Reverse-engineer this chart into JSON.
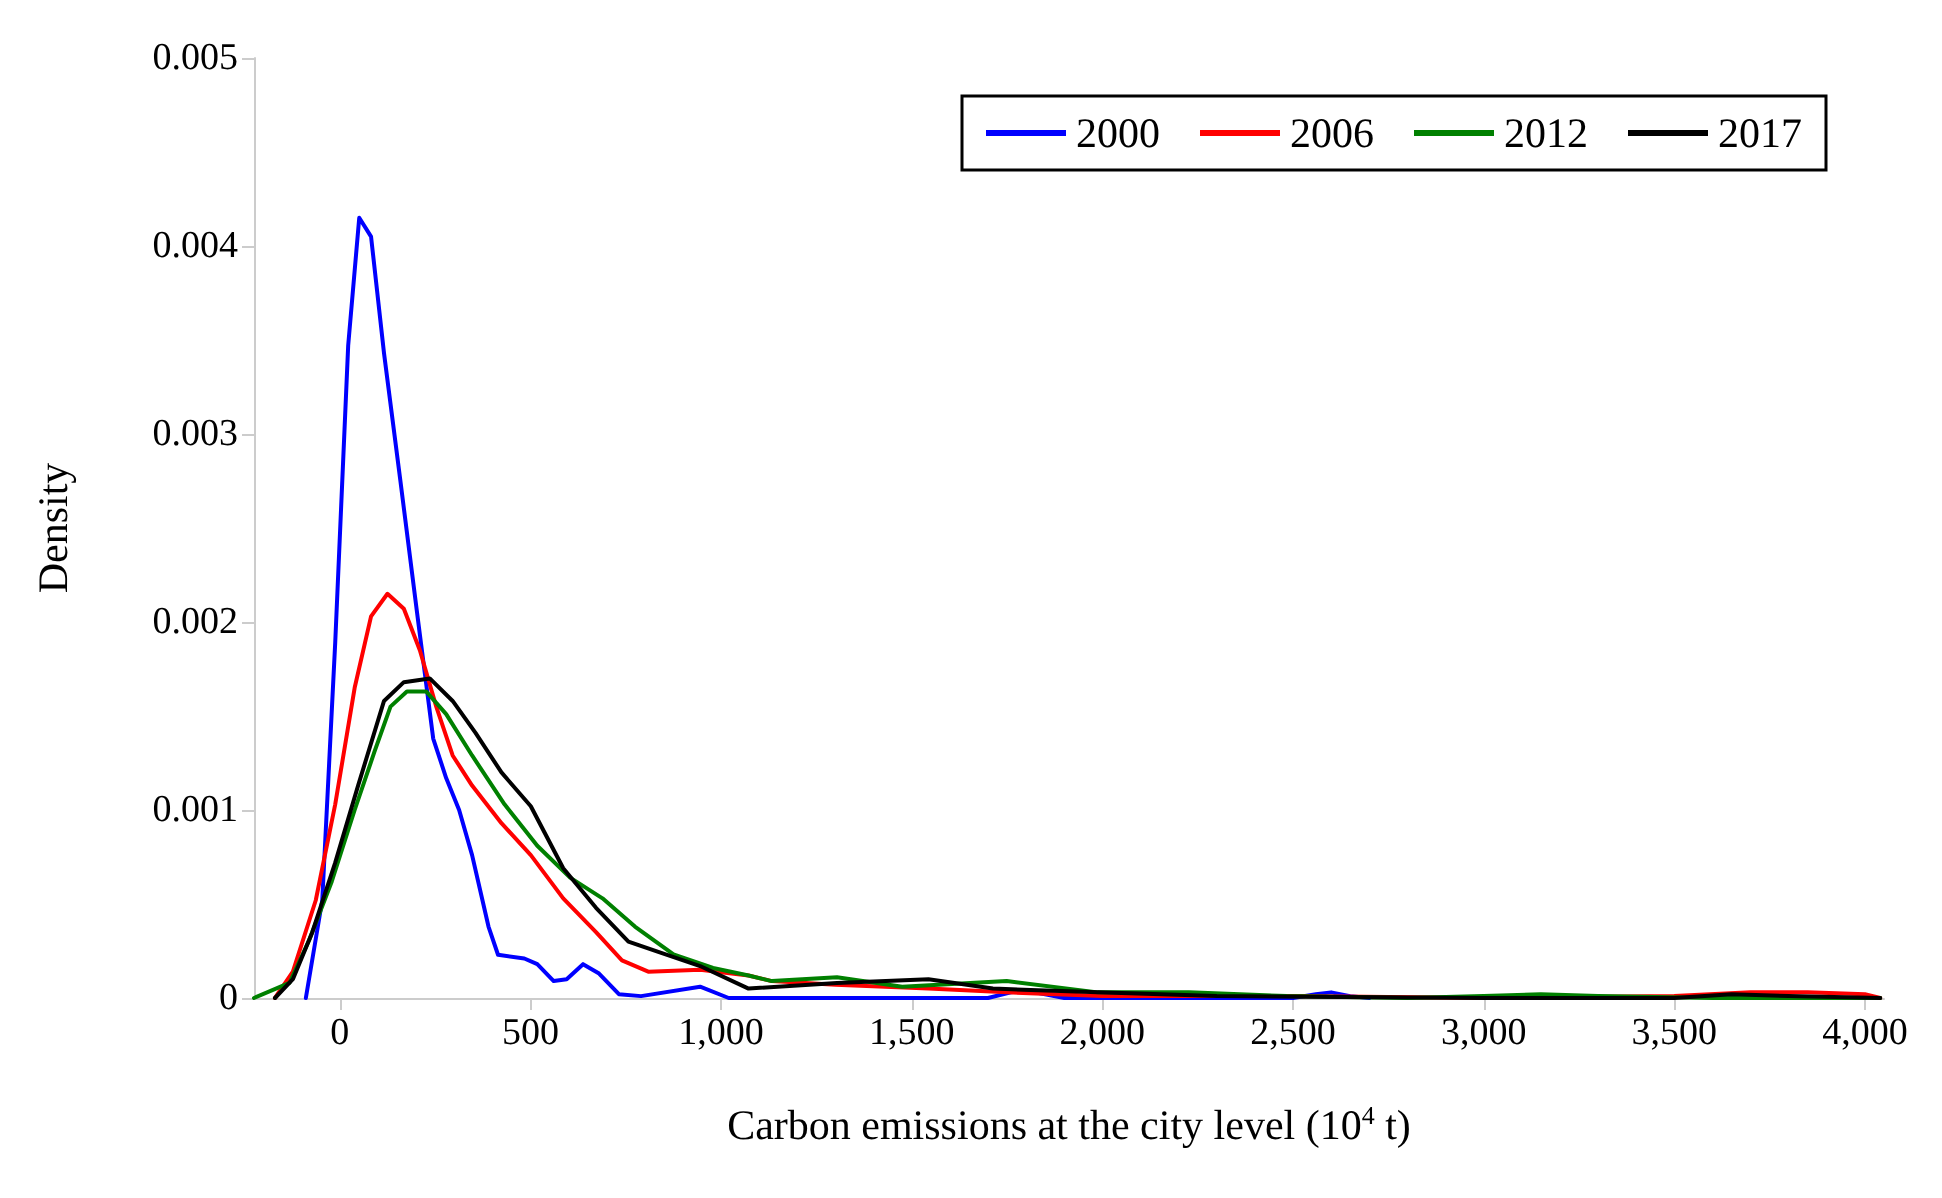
{
  "chart_data": {
    "type": "line",
    "xlabel": "Carbon emissions at the city level (10$^{4}$ t)",
    "ylabel": "Density",
    "xlim": [
      -225,
      4050
    ],
    "xticks": [
      0,
      500,
      {
        "value": 1000,
        "label": "1,000"
      },
      {
        "value": 1500,
        "label": "1,500"
      },
      {
        "value": 2000,
        "label": "2,000"
      },
      {
        "value": 2500,
        "label": "2,500"
      },
      {
        "value": 3000,
        "label": "3,000"
      },
      {
        "value": 3500,
        "label": "3,500"
      },
      {
        "value": 4000,
        "label": "4,000"
      }
    ],
    "ylim": [
      0,
      0.005
    ],
    "yticks": [
      0,
      0.001,
      0.002,
      0.003,
      0.004,
      0.005
    ],
    "grid": false,
    "legend": "top right",
    "marker": "none",
    "line_style": "solid",
    "series": [
      {
        "name": "2000",
        "color": "#0000ff",
        "x": [
          -89,
          -46,
          -12,
          22,
          51,
          82,
          116,
          159,
          202,
          245,
          279,
          313,
          347,
          390,
          415,
          484,
          518,
          561,
          595,
          638,
          680,
          732,
          790,
          945,
          1020,
          1700,
          1760,
          1800,
          1850,
          1900,
          2500,
          2560,
          2600,
          2650,
          2700
        ],
        "values": [
          0,
          0.00052,
          0.00189,
          0.00347,
          0.00415,
          0.00405,
          0.00343,
          0.00275,
          0.00206,
          0.00138,
          0.00117,
          0.001,
          0.00076,
          0.00038,
          0.00023,
          0.00021,
          0.00018,
          9e-05,
          0.0001,
          0.00018,
          0.00013,
          2e-05,
          1e-05,
          6e-05,
          0,
          0,
          3e-05,
          4e-05,
          2e-05,
          0,
          0,
          2e-05,
          3e-05,
          1e-05,
          0
        ]
      },
      {
        "name": "2006",
        "color": "#ff0000",
        "x": [
          -170,
          -123,
          -63,
          -12,
          39,
          82,
          125,
          168,
          210,
          253,
          296,
          347,
          424,
          501,
          586,
          672,
          740,
          809,
          945,
          1072,
          1133,
          1300,
          1544,
          1749,
          2000,
          2500,
          3000,
          3500,
          3700,
          3850,
          4000,
          4040
        ],
        "values": [
          0,
          0.00014,
          0.00052,
          0.00103,
          0.00165,
          0.00203,
          0.00215,
          0.00207,
          0.00185,
          0.00155,
          0.00129,
          0.00113,
          0.00093,
          0.00076,
          0.00053,
          0.00035,
          0.0002,
          0.00014,
          0.00015,
          0.00012,
          9e-05,
          7e-05,
          5e-05,
          3e-05,
          1e-05,
          1e-05,
          0,
          1e-05,
          3e-05,
          3e-05,
          2e-05,
          0
        ]
      },
      {
        "name": "2012",
        "color": "#008000",
        "x": [
          -225,
          -132,
          -80,
          -21,
          39,
          91,
          133,
          176,
          227,
          279,
          347,
          432,
          518,
          604,
          689,
          774,
          877,
          979,
          1072,
          1133,
          1304,
          1475,
          1749,
          1988,
          2227,
          2483,
          2800,
          3000,
          3150,
          3300,
          3600,
          4040
        ],
        "values": [
          0,
          8e-05,
          0.00031,
          0.00062,
          0.001,
          0.00131,
          0.00155,
          0.00163,
          0.00163,
          0.00151,
          0.00129,
          0.00103,
          0.00081,
          0.00064,
          0.00053,
          0.00038,
          0.00023,
          0.00016,
          0.00012,
          9e-05,
          0.00011,
          6e-05,
          9e-05,
          3e-05,
          3e-05,
          1e-05,
          0,
          1e-05,
          2e-05,
          1e-05,
          0,
          0
        ]
      },
      {
        "name": "2017",
        "color": "#000000",
        "x": [
          -170,
          -123,
          -72,
          -12,
          48,
          116,
          168,
          236,
          296,
          356,
          424,
          501,
          586,
          672,
          757,
          843,
          945,
          1072,
          1304,
          1544,
          1713,
          1988,
          2300,
          3000,
          3500,
          3650,
          3800,
          4040
        ],
        "values": [
          0,
          0.0001,
          0.00035,
          0.00072,
          0.00113,
          0.00158,
          0.00168,
          0.0017,
          0.00158,
          0.00141,
          0.0012,
          0.00102,
          0.00069,
          0.00048,
          0.0003,
          0.00024,
          0.00017,
          5e-05,
          8e-05,
          0.0001,
          5e-05,
          3e-05,
          1e-05,
          0,
          0,
          2e-05,
          1e-05,
          0
        ]
      }
    ]
  }
}
